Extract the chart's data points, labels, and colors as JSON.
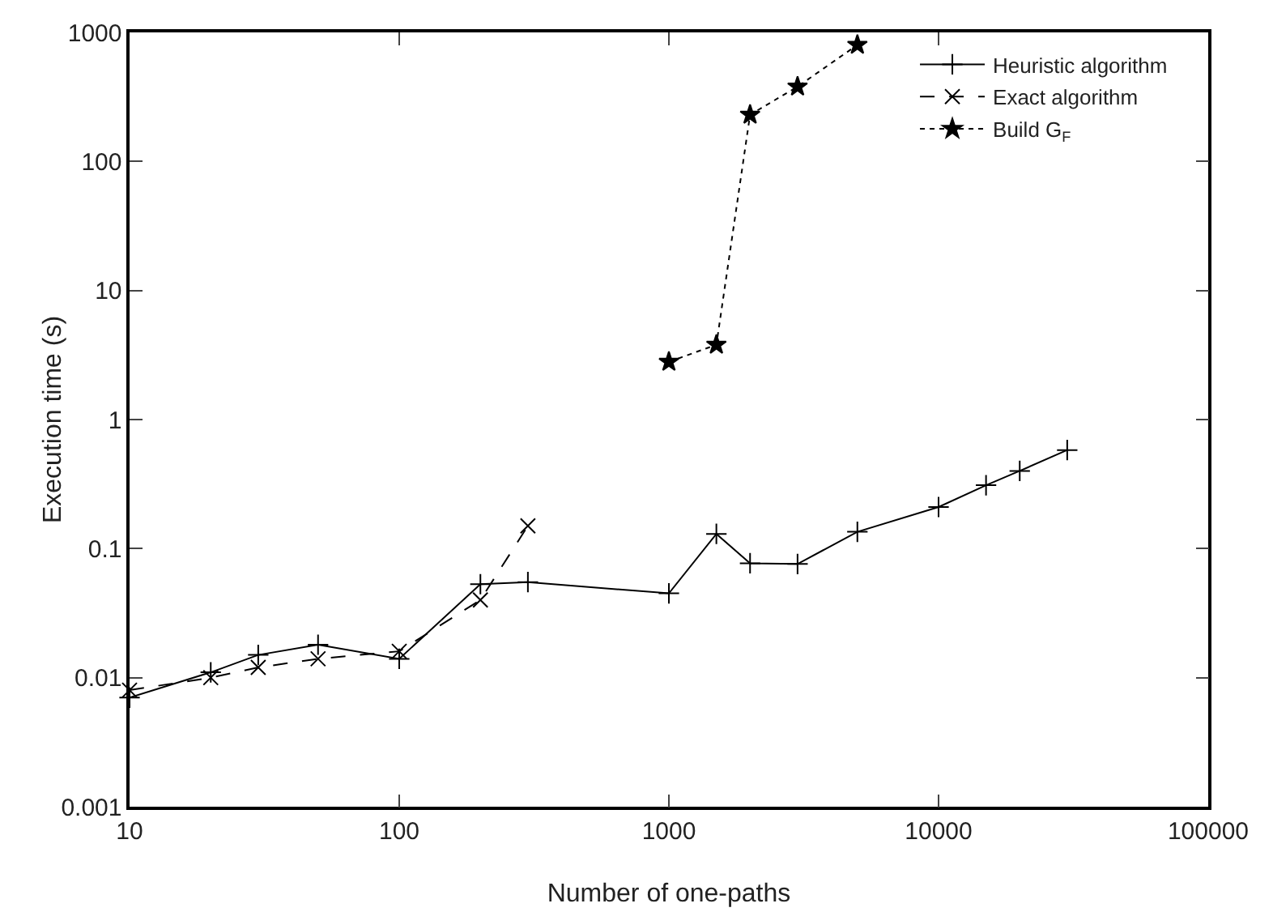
{
  "chart_data": {
    "type": "line",
    "xlabel": "Number of one-paths",
    "ylabel": "Execution time (s)",
    "log": "xy",
    "grid": false,
    "legend": "top right",
    "xlim": [
      10,
      100000
    ],
    "xticks": [
      10,
      100,
      1000,
      10000,
      100000
    ],
    "ylim": [
      0.001,
      1000
    ],
    "yticks": [
      0.001,
      0.01,
      0.1,
      1,
      10,
      100,
      1000
    ],
    "series": [
      {
        "name": "Heuristic algorithm",
        "color": "#000000",
        "marker": "cross",
        "line_style": "solid",
        "x": [
          10,
          20,
          30,
          50,
          100,
          200,
          300,
          1000,
          1500,
          2000,
          3000,
          5000,
          10000,
          15000,
          20000,
          30000
        ],
        "values": [
          0.007,
          0.011,
          0.015,
          0.018,
          0.014,
          0.053,
          0.055,
          0.045,
          0.13,
          0.077,
          0.076,
          0.135,
          0.21,
          0.31,
          0.4,
          0.58
        ]
      },
      {
        "name": "Exact algorithm",
        "color": "#000000",
        "marker": "x",
        "line_style": "dashed",
        "x": [
          10,
          20,
          30,
          50,
          100,
          200,
          300
        ],
        "values": [
          0.008,
          0.01,
          0.012,
          0.014,
          0.016,
          0.04,
          0.15
        ]
      },
      {
        "name": "Build G$_{F}$",
        "color": "#000000",
        "marker": "star",
        "line_style": "dotted",
        "x": [
          1000,
          1500,
          2000,
          3000,
          5000
        ],
        "values": [
          2.8,
          3.8,
          230,
          380,
          800
        ]
      }
    ]
  }
}
